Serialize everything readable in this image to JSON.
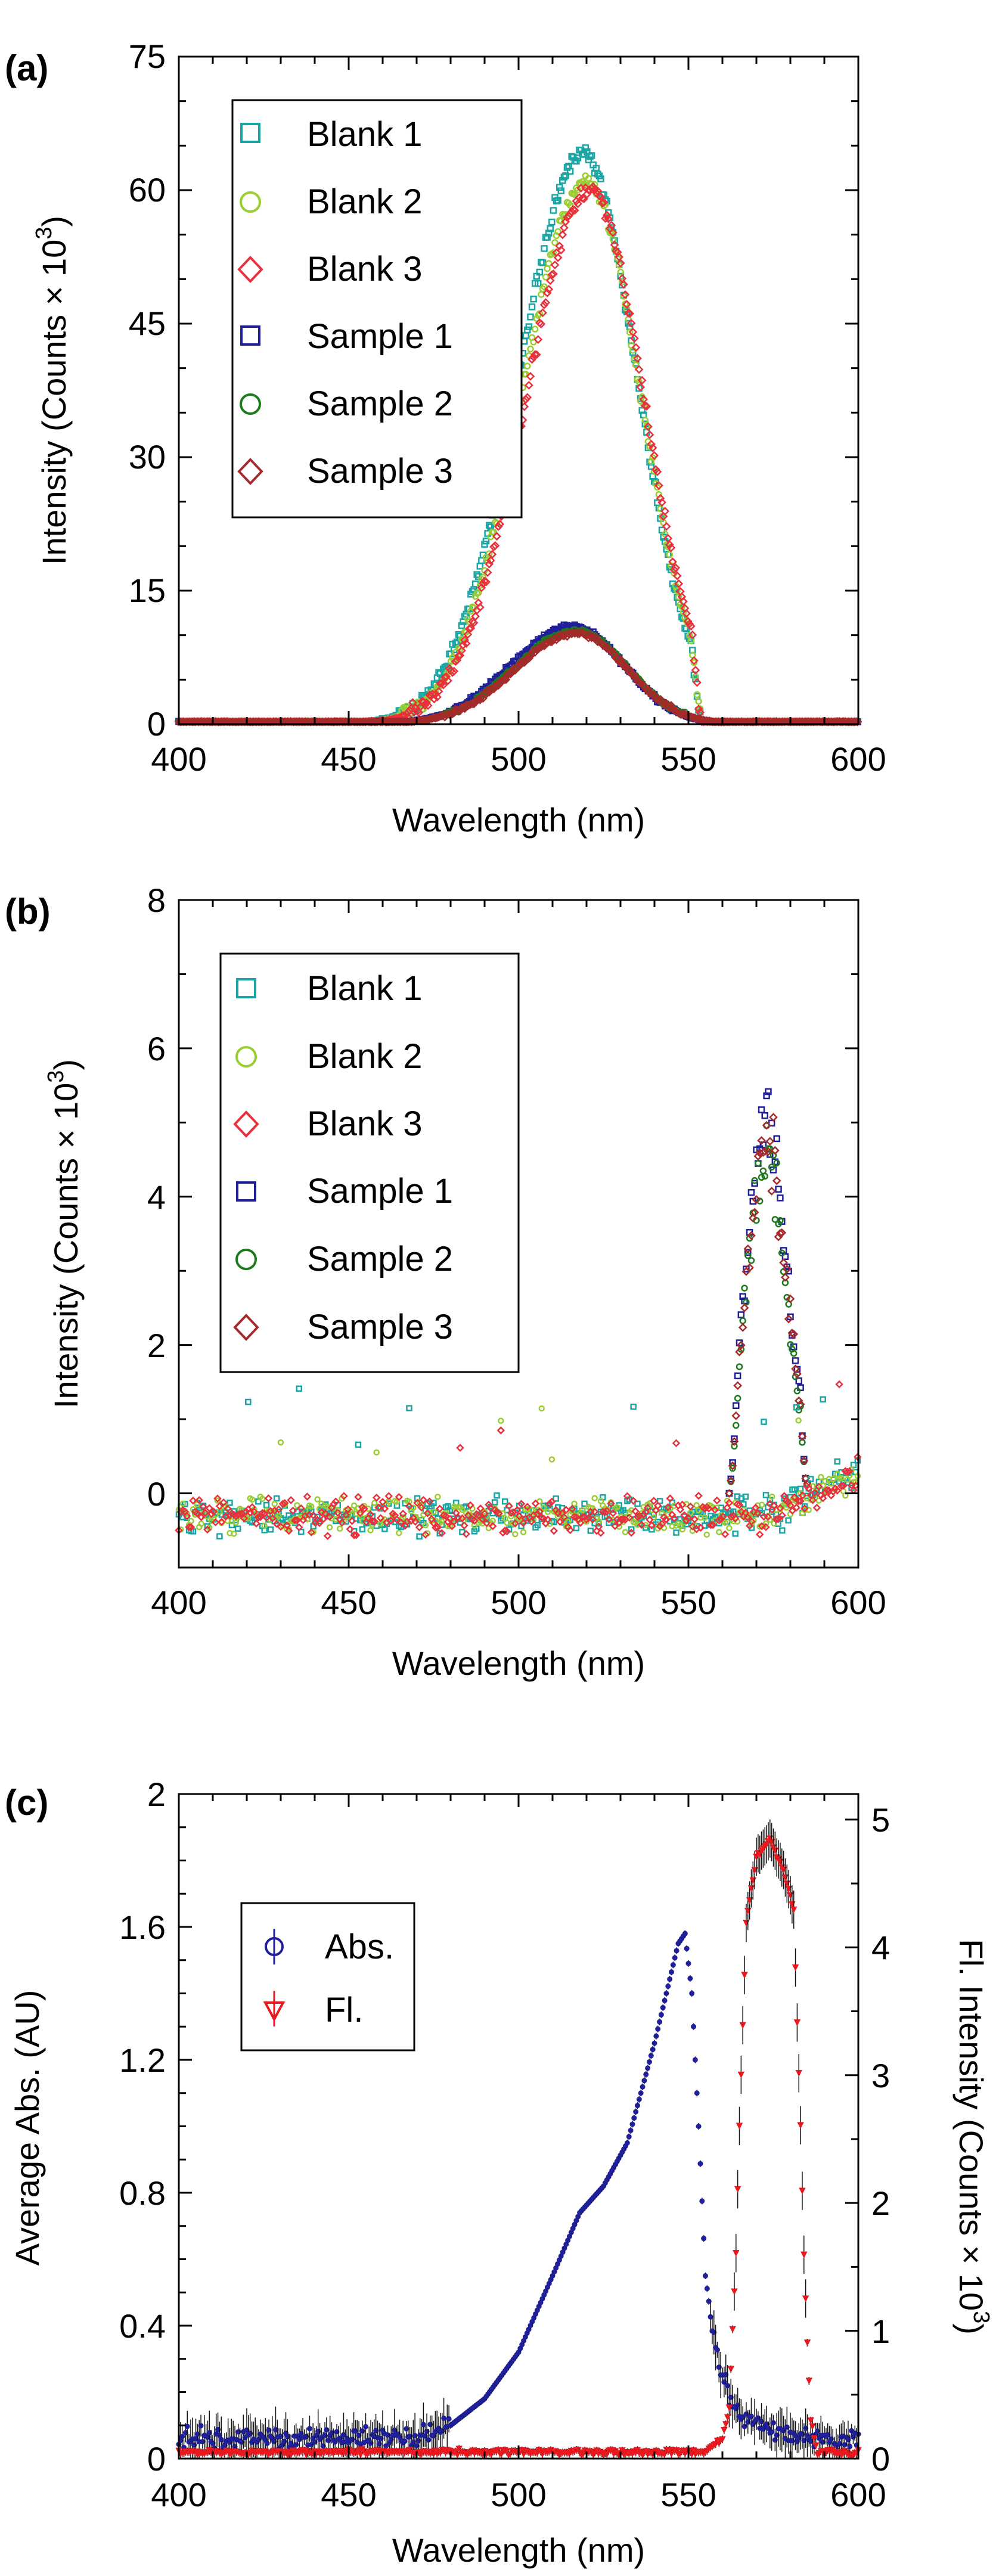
{
  "chart_data": [
    {
      "type": "scatter",
      "panel_label": "(a)",
      "xlabel": "Wavelength (nm)",
      "ylabel": "Intensity (Counts × 10",
      "ylabel_exp": "3",
      "ylabel_close": ")",
      "xlim": [
        400,
        600
      ],
      "ylim": [
        0,
        75
      ],
      "xticks": [
        "400",
        "450",
        "500",
        "550",
        "600"
      ],
      "yticks": [
        "0",
        "15",
        "30",
        "45",
        "60",
        "75"
      ],
      "legend_position": "top-left",
      "series": [
        {
          "name": "Blank 1",
          "marker": "square",
          "color": "#1aa5a5",
          "peak_x": 519,
          "peak_y": 64,
          "left_width": 19,
          "right_width": 16,
          "cutoff": 554
        },
        {
          "name": "Blank 2",
          "marker": "circle",
          "color": "#9acd32",
          "peak_x": 520,
          "peak_y": 61,
          "left_width": 19,
          "right_width": 16,
          "cutoff": 554
        },
        {
          "name": "Blank 3",
          "marker": "diamond",
          "color": "#e8313c",
          "peak_x": 521,
          "peak_y": 60,
          "left_width": 19,
          "right_width": 16,
          "cutoff": 554
        },
        {
          "name": "Sample 1",
          "marker": "square",
          "color": "#1f1f99",
          "peak_x": 516,
          "peak_y": 11,
          "left_width": 18,
          "right_width": 15,
          "cutoff": 560
        },
        {
          "name": "Sample 2",
          "marker": "circle",
          "color": "#1c7a1c",
          "peak_x": 517,
          "peak_y": 10.5,
          "left_width": 18,
          "right_width": 15,
          "cutoff": 560
        },
        {
          "name": "Sample 3",
          "marker": "diamond",
          "color": "#a52a2a",
          "peak_x": 517,
          "peak_y": 10.2,
          "left_width": 18,
          "right_width": 15,
          "cutoff": 560
        }
      ]
    },
    {
      "type": "scatter",
      "panel_label": "(b)",
      "xlabel": "Wavelength (nm)",
      "ylabel": "Intensity (Counts × 10",
      "ylabel_exp": "3",
      "ylabel_close": ")",
      "xlim": [
        400,
        600
      ],
      "ylim": [
        -1,
        8
      ],
      "xticks": [
        "400",
        "450",
        "500",
        "550",
        "600"
      ],
      "yticks": [
        "0",
        "2",
        "4",
        "6",
        "8"
      ],
      "legend_position": "top-left",
      "series": [
        {
          "name": "Blank 1",
          "marker": "square",
          "color": "#1aa5a5",
          "baseline": -0.3
        },
        {
          "name": "Blank 2",
          "marker": "circle",
          "color": "#9acd32",
          "baseline": -0.3
        },
        {
          "name": "Blank 3",
          "marker": "diamond",
          "color": "#e8313c",
          "baseline": -0.3
        },
        {
          "name": "Sample 1",
          "marker": "square",
          "color": "#1f1f99",
          "peak_x": 573,
          "peak_y": 5.0,
          "peak_range": [
            562,
            585
          ]
        },
        {
          "name": "Sample 2",
          "marker": "circle",
          "color": "#1c7a1c",
          "peak_x": 573,
          "peak_y": 4.5,
          "peak_range": [
            562,
            585
          ]
        },
        {
          "name": "Sample 3",
          "marker": "diamond",
          "color": "#a52a2a",
          "peak_x": 573,
          "peak_y": 4.7,
          "peak_range": [
            562,
            585
          ]
        }
      ]
    },
    {
      "type": "scatter",
      "panel_label": "(c)",
      "xlabel": "Wavelength (nm)",
      "ylabel": "Average Abs. (AU)",
      "ylabel_right": "Fl. Intensity (Counts × 10",
      "ylabel_right_exp": "3",
      "ylabel_right_close": ")",
      "xlim": [
        400,
        600
      ],
      "ylim": [
        0,
        2
      ],
      "ylim_right": [
        0,
        5.2
      ],
      "xticks": [
        "400",
        "450",
        "500",
        "550",
        "600"
      ],
      "yticks": [
        "0",
        "0.4",
        "0.8",
        "1.2",
        "1.6",
        "2"
      ],
      "yticks_right": [
        "0",
        "1",
        "2",
        "3",
        "4",
        "5"
      ],
      "legend_position": "top-left",
      "series": [
        {
          "name": "Abs.",
          "marker": "circle-errorbar",
          "color": "#1f1f99",
          "axis": "left",
          "points": [
            [
              400,
              0.06
            ],
            [
              470,
              0.06
            ],
            [
              480,
              0.1
            ],
            [
              490,
              0.18
            ],
            [
              500,
              0.32
            ],
            [
              510,
              0.55
            ],
            [
              518,
              0.74
            ],
            [
              525,
              0.82
            ],
            [
              532,
              0.95
            ],
            [
              540,
              1.25
            ],
            [
              547,
              1.55
            ],
            [
              549,
              1.58
            ],
            [
              551,
              1.4
            ],
            [
              553,
              1.0
            ],
            [
              555,
              0.55
            ],
            [
              558,
              0.32
            ],
            [
              562,
              0.18
            ],
            [
              566,
              0.12
            ],
            [
              575,
              0.08
            ],
            [
              600,
              0.05
            ]
          ]
        },
        {
          "name": "Fl.",
          "marker": "triangle-errorbar",
          "color": "#e8191e",
          "axis": "right",
          "points": [
            [
              400,
              0.05
            ],
            [
              555,
              0.05
            ],
            [
              560,
              0.15
            ],
            [
              562,
              0.4
            ],
            [
              564,
              1.6
            ],
            [
              565,
              2.6
            ],
            [
              566,
              3.4
            ],
            [
              567,
              4.2
            ],
            [
              570,
              4.7
            ],
            [
              574,
              4.85
            ],
            [
              578,
              4.6
            ],
            [
              581,
              4.3
            ],
            [
              582,
              3.4
            ],
            [
              583,
              2.6
            ],
            [
              584,
              1.6
            ],
            [
              585,
              0.9
            ],
            [
              586,
              0.3
            ],
            [
              588,
              0.05
            ],
            [
              600,
              0.04
            ]
          ]
        }
      ]
    }
  ]
}
